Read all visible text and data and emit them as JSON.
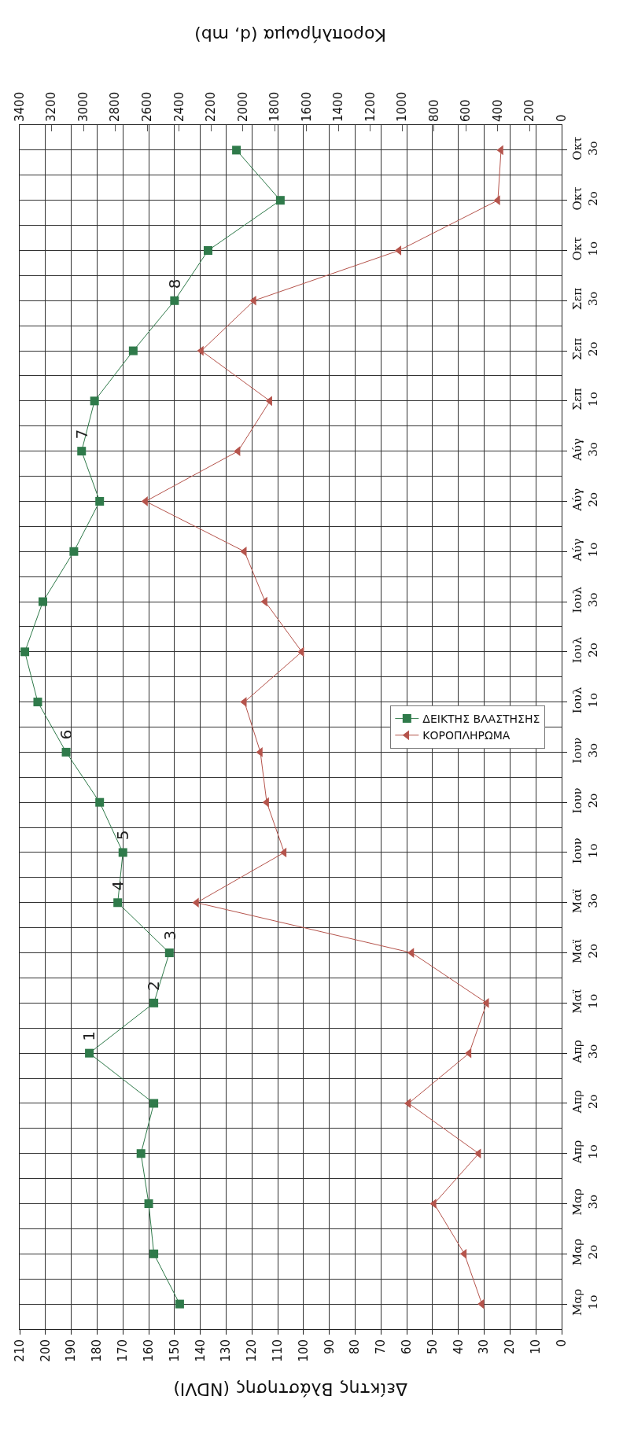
{
  "chart_data": {
    "type": "line",
    "orientation": "horizontal",
    "xlabel": "Δείκτης Βλάστησης (NDVI)",
    "x2label": "Κοροπλήρωμα (d, mb)",
    "categories": [
      "Οκτ\n3ο",
      "Οκτ\n2ο",
      "Οκτ\n1ο",
      "Σεπ\n3ο",
      "Σεπ\n2ο",
      "Σεπ\n1ο",
      "Αύγ\n3ο",
      "Αύγ\n2ο",
      "Αύγ\n1ο",
      "Ιουλ\n3ο",
      "Ιουλ\n2ο",
      "Ιουλ\n1ο",
      "Ιουν\n3ο",
      "Ιουν\n2ο",
      "Ιουν\n1ο",
      "Μαϊ\n3ο",
      "Μαϊ\n2ο",
      "Μαϊ\n1ο",
      "Απρ\n3ο",
      "Απρ\n2ο",
      "Απρ\n1ο",
      "Μαρ\n3ο",
      "Μαρ\n2ο",
      "Μαρ\n1ο"
    ],
    "series": [
      {
        "name": "ΔΕΙΚΤΗΣ ΒΛΑΣΤΗΣΗΣ",
        "color": "#2f7a4a",
        "marker": "square",
        "values": [
          126,
          109,
          137,
          150,
          166,
          181,
          186,
          179,
          189,
          201,
          208,
          203,
          192,
          179,
          170,
          172,
          152,
          158,
          183,
          158,
          163,
          160,
          158,
          148
        ]
      },
      {
        "name": "ΚΟΡΟΠΛΗΡΩΜΑ",
        "color": "#b5544c",
        "marker": "triangle",
        "axis": "x2",
        "values": [
          380,
          400,
          1020,
          1930,
          2260,
          1830,
          2030,
          2610,
          1990,
          1860,
          1630,
          1990,
          1890,
          1850,
          1740,
          2290,
          940,
          470,
          580,
          960,
          520,
          800,
          610,
          500
        ]
      }
    ],
    "xlim": [
      210,
      0
    ],
    "xticks": [
      210,
      200,
      190,
      180,
      170,
      160,
      150,
      140,
      130,
      120,
      110,
      100,
      90,
      80,
      70,
      60,
      50,
      40,
      30,
      20,
      10,
      0
    ],
    "x2lim": [
      3400,
      0
    ],
    "x2ticks": [
      3400,
      3200,
      3000,
      2800,
      2600,
      2400,
      2200,
      2000,
      1800,
      1600,
      1400,
      1200,
      1000,
      800,
      600,
      400,
      200,
      0
    ],
    "grid": true,
    "legend": "right",
    "line_style": "solid",
    "annotations": [
      {
        "text": "1",
        "y": "Απρ\n3ο",
        "x": 183
      },
      {
        "text": "2",
        "y": "Μαϊ\n1ο",
        "x": 158
      },
      {
        "text": "3",
        "y": "Μαϊ\n2ο",
        "x": 152
      },
      {
        "text": "4",
        "y": "Μαϊ\n3ο",
        "x": 172
      },
      {
        "text": "5",
        "y": "Ιουν\n1ο",
        "x": 170
      },
      {
        "text": "6",
        "y": "Ιουν\n3ο",
        "x": 192
      },
      {
        "text": "7",
        "y": "Αύγ\n3ο",
        "x": 186
      },
      {
        "text": "8",
        "y": "Σεπ\n3ο",
        "x": 150
      }
    ]
  }
}
